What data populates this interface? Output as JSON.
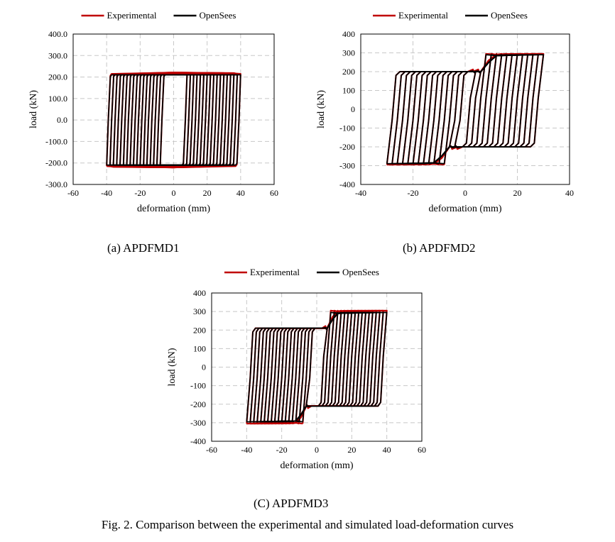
{
  "chart_data": [
    {
      "type": "line",
      "title": "",
      "xlabel": "deformation (mm)",
      "ylabel": "load (kN)",
      "xlim": [
        -60,
        60
      ],
      "ylim": [
        -300,
        400
      ],
      "xticks": [
        "-60",
        "-40",
        "-20",
        "0",
        "20",
        "40",
        "60"
      ],
      "yticks": [
        "-300.0",
        "-200.0",
        "-100.0",
        "0.0",
        "100.0",
        "200.0",
        "300.0",
        "400.0"
      ],
      "grid": true,
      "legend": "top",
      "series": [
        {
          "name": "Experimental",
          "color": "#c00000",
          "dmax": [
            8,
            10,
            12,
            14,
            16,
            18,
            20,
            22,
            24,
            26,
            28,
            30,
            32,
            34,
            36,
            38,
            40
          ],
          "upper_plateau": 215,
          "lower_plateau": -215
        },
        {
          "name": "OpenSees",
          "color": "#000000",
          "dmax": [
            8,
            10,
            12,
            14,
            16,
            18,
            20,
            22,
            24,
            26,
            28,
            30,
            32,
            34,
            36,
            38,
            40
          ],
          "upper_plateau": 210,
          "lower_plateau": -210
        }
      ]
    },
    {
      "type": "line",
      "title": "",
      "xlabel": "deformation (mm)",
      "ylabel": "load (kN)",
      "xlim": [
        -40,
        40
      ],
      "ylim": [
        -400,
        400
      ],
      "xticks": [
        "-40",
        "-20",
        "0",
        "20",
        "40"
      ],
      "yticks": [
        "-400",
        "-300",
        "-200",
        "-100",
        "0",
        "100",
        "200",
        "300",
        "400"
      ],
      "grid": true,
      "legend": "top",
      "series": [
        {
          "name": "Experimental",
          "color": "#c00000",
          "dmax": [
            4,
            6,
            8,
            10,
            12,
            14,
            16,
            18,
            20,
            22,
            24,
            26,
            28,
            30
          ],
          "first_plateau": 200,
          "second_plateau": 295
        },
        {
          "name": "OpenSees",
          "color": "#000000",
          "dmax": [
            4,
            6,
            8,
            10,
            12,
            14,
            16,
            18,
            20,
            22,
            24,
            26,
            28,
            30
          ],
          "first_plateau": 200,
          "second_plateau": 290
        }
      ]
    },
    {
      "type": "line",
      "title": "",
      "xlabel": "deformation (mm)",
      "ylabel": "load (kN)",
      "xlim": [
        -60,
        60
      ],
      "ylim": [
        -400,
        400
      ],
      "xticks": [
        "-60",
        "-40",
        "-20",
        "0",
        "20",
        "40",
        "60"
      ],
      "yticks": [
        "-400",
        "-300",
        "-200",
        "-100",
        "0",
        "100",
        "200",
        "300",
        "400"
      ],
      "grid": true,
      "legend": "top",
      "series": [
        {
          "name": "Experimental",
          "color": "#c00000",
          "dmax": [
            6,
            8,
            10,
            12,
            14,
            16,
            18,
            20,
            22,
            24,
            26,
            28,
            30,
            32,
            34,
            36,
            38,
            40
          ],
          "first_plateau": 210,
          "second_plateau": 305
        },
        {
          "name": "OpenSees",
          "color": "#000000",
          "dmax": [
            6,
            8,
            10,
            12,
            14,
            16,
            18,
            20,
            22,
            24,
            26,
            28,
            30,
            32,
            34,
            36,
            38,
            40
          ],
          "first_plateau": 210,
          "second_plateau": 295
        }
      ]
    }
  ],
  "captions": [
    "(a) APDFMD1",
    "(b) APDFMD2",
    "(C) APDFMD3"
  ],
  "figure_caption": "Fig. 2. Comparison between the experimental and simulated load-deformation curves"
}
